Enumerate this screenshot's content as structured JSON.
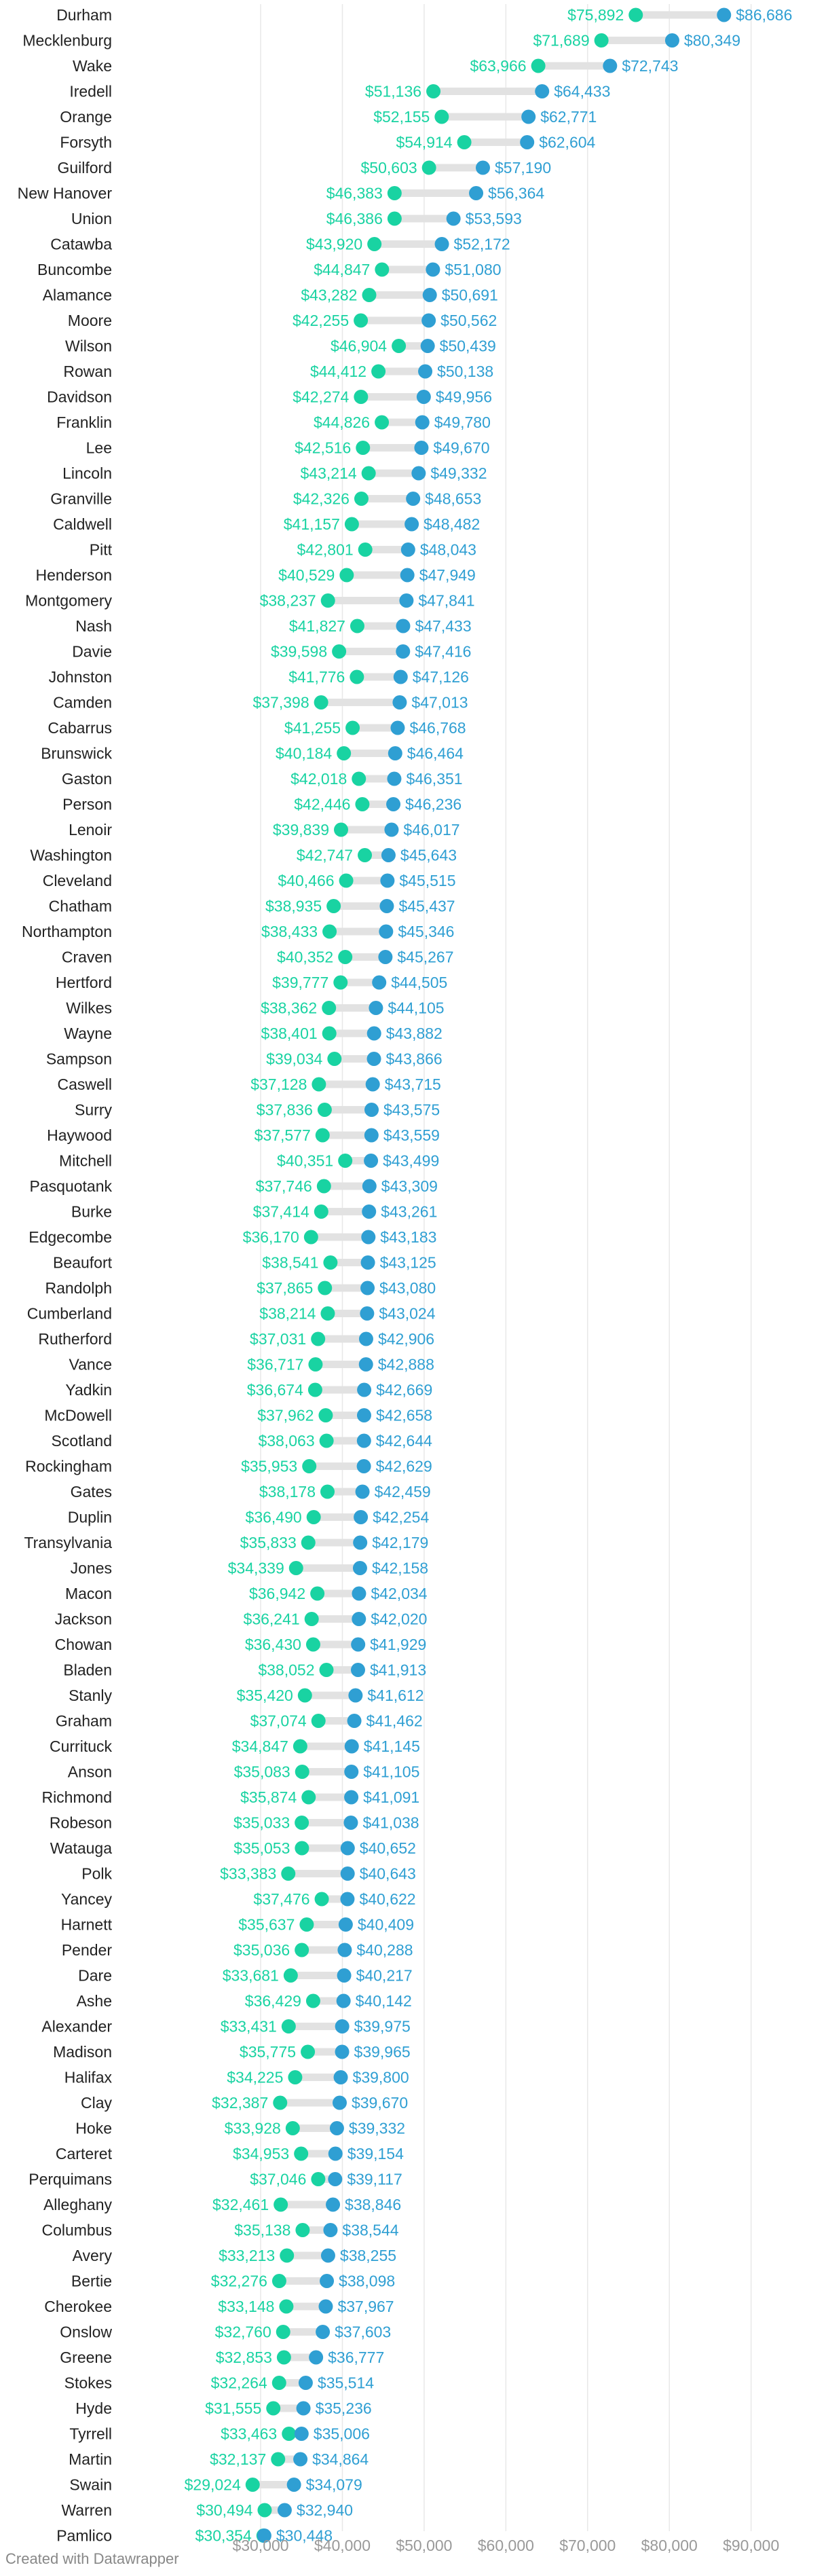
{
  "colors": {
    "low": "#19d3a2",
    "high": "#2f9fd3",
    "connector": "#e2e2e2",
    "grid": "#e8e8e8",
    "axis_text": "#999999"
  },
  "credit": "Created with Datawrapper",
  "chart_data": {
    "type": "dot-range",
    "title": "",
    "xlim": [
      23000,
      93000
    ],
    "ticks": [
      30000,
      40000,
      50000,
      60000,
      70000,
      80000,
      90000
    ],
    "tick_labels": [
      "$30,000",
      "$40,000",
      "$50,000",
      "$60,000",
      "$70,000",
      "$80,000",
      "$90,000"
    ],
    "series": [
      {
        "name": "low",
        "color": "#19d3a2"
      },
      {
        "name": "high",
        "color": "#2f9fd3"
      }
    ],
    "rows": [
      {
        "county": "Durham",
        "low": 75892,
        "low_label": "$75,892",
        "high": 86686,
        "high_label": "$86,686"
      },
      {
        "county": "Mecklenburg",
        "low": 71689,
        "low_label": "$71,689",
        "high": 80349,
        "high_label": "$80,349"
      },
      {
        "county": "Wake",
        "low": 63966,
        "low_label": "$63,966",
        "high": 72743,
        "high_label": "$72,743"
      },
      {
        "county": "Iredell",
        "low": 51136,
        "low_label": "$51,136",
        "high": 64433,
        "high_label": "$64,433"
      },
      {
        "county": "Orange",
        "low": 52155,
        "low_label": "$52,155",
        "high": 62771,
        "high_label": "$62,771"
      },
      {
        "county": "Forsyth",
        "low": 54914,
        "low_label": "$54,914",
        "high": 62604,
        "high_label": "$62,604"
      },
      {
        "county": "Guilford",
        "low": 50603,
        "low_label": "$50,603",
        "high": 57190,
        "high_label": "$57,190"
      },
      {
        "county": "New Hanover",
        "low": 46383,
        "low_label": "$46,383",
        "high": 56364,
        "high_label": "$56,364"
      },
      {
        "county": "Union",
        "low": 46386,
        "low_label": "$46,386",
        "high": 53593,
        "high_label": "$53,593"
      },
      {
        "county": "Catawba",
        "low": 43920,
        "low_label": "$43,920",
        "high": 52172,
        "high_label": "$52,172"
      },
      {
        "county": "Buncombe",
        "low": 44847,
        "low_label": "$44,847",
        "high": 51080,
        "high_label": "$51,080"
      },
      {
        "county": "Alamance",
        "low": 43282,
        "low_label": "$43,282",
        "high": 50691,
        "high_label": "$50,691"
      },
      {
        "county": "Moore",
        "low": 42255,
        "low_label": "$42,255",
        "high": 50562,
        "high_label": "$50,562"
      },
      {
        "county": "Wilson",
        "low": 46904,
        "low_label": "$46,904",
        "high": 50439,
        "high_label": "$50,439"
      },
      {
        "county": "Rowan",
        "low": 44412,
        "low_label": "$44,412",
        "high": 50138,
        "high_label": "$50,138"
      },
      {
        "county": "Davidson",
        "low": 42274,
        "low_label": "$42,274",
        "high": 49956,
        "high_label": "$49,956"
      },
      {
        "county": "Franklin",
        "low": 44826,
        "low_label": "$44,826",
        "high": 49780,
        "high_label": "$49,780"
      },
      {
        "county": "Lee",
        "low": 42516,
        "low_label": "$42,516",
        "high": 49670,
        "high_label": "$49,670"
      },
      {
        "county": "Lincoln",
        "low": 43214,
        "low_label": "$43,214",
        "high": 49332,
        "high_label": "$49,332"
      },
      {
        "county": "Granville",
        "low": 42326,
        "low_label": "$42,326",
        "high": 48653,
        "high_label": "$48,653"
      },
      {
        "county": "Caldwell",
        "low": 41157,
        "low_label": "$41,157",
        "high": 48482,
        "high_label": "$48,482"
      },
      {
        "county": "Pitt",
        "low": 42801,
        "low_label": "$42,801",
        "high": 48043,
        "high_label": "$48,043"
      },
      {
        "county": "Henderson",
        "low": 40529,
        "low_label": "$40,529",
        "high": 47949,
        "high_label": "$47,949"
      },
      {
        "county": "Montgomery",
        "low": 38237,
        "low_label": "$38,237",
        "high": 47841,
        "high_label": "$47,841"
      },
      {
        "county": "Nash",
        "low": 41827,
        "low_label": "$41,827",
        "high": 47433,
        "high_label": "$47,433"
      },
      {
        "county": "Davie",
        "low": 39598,
        "low_label": "$39,598",
        "high": 47416,
        "high_label": "$47,416"
      },
      {
        "county": "Johnston",
        "low": 41776,
        "low_label": "$41,776",
        "high": 47126,
        "high_label": "$47,126"
      },
      {
        "county": "Camden",
        "low": 37398,
        "low_label": "$37,398",
        "high": 47013,
        "high_label": "$47,013"
      },
      {
        "county": "Cabarrus",
        "low": 41255,
        "low_label": "$41,255",
        "high": 46768,
        "high_label": "$46,768"
      },
      {
        "county": "Brunswick",
        "low": 40184,
        "low_label": "$40,184",
        "high": 46464,
        "high_label": "$46,464"
      },
      {
        "county": "Gaston",
        "low": 42018,
        "low_label": "$42,018",
        "high": 46351,
        "high_label": "$46,351"
      },
      {
        "county": "Person",
        "low": 42446,
        "low_label": "$42,446",
        "high": 46236,
        "high_label": "$46,236"
      },
      {
        "county": "Lenoir",
        "low": 39839,
        "low_label": "$39,839",
        "high": 46017,
        "high_label": "$46,017"
      },
      {
        "county": "Washington",
        "low": 42747,
        "low_label": "$42,747",
        "high": 45643,
        "high_label": "$45,643"
      },
      {
        "county": "Cleveland",
        "low": 40466,
        "low_label": "$40,466",
        "high": 45515,
        "high_label": "$45,515"
      },
      {
        "county": "Chatham",
        "low": 38935,
        "low_label": "$38,935",
        "high": 45437,
        "high_label": "$45,437"
      },
      {
        "county": "Northampton",
        "low": 38433,
        "low_label": "$38,433",
        "high": 45346,
        "high_label": "$45,346"
      },
      {
        "county": "Craven",
        "low": 40352,
        "low_label": "$40,352",
        "high": 45267,
        "high_label": "$45,267"
      },
      {
        "county": "Hertford",
        "low": 39777,
        "low_label": "$39,777",
        "high": 44505,
        "high_label": "$44,505"
      },
      {
        "county": "Wilkes",
        "low": 38362,
        "low_label": "$38,362",
        "high": 44105,
        "high_label": "$44,105"
      },
      {
        "county": "Wayne",
        "low": 38401,
        "low_label": "$38,401",
        "high": 43882,
        "high_label": "$43,882"
      },
      {
        "county": "Sampson",
        "low": 39034,
        "low_label": "$39,034",
        "high": 43866,
        "high_label": "$43,866"
      },
      {
        "county": "Caswell",
        "low": 37128,
        "low_label": "$37,128",
        "high": 43715,
        "high_label": "$43,715"
      },
      {
        "county": "Surry",
        "low": 37836,
        "low_label": "$37,836",
        "high": 43575,
        "high_label": "$43,575"
      },
      {
        "county": "Haywood",
        "low": 37577,
        "low_label": "$37,577",
        "high": 43559,
        "high_label": "$43,559"
      },
      {
        "county": "Mitchell",
        "low": 40351,
        "low_label": "$40,351",
        "high": 43499,
        "high_label": "$43,499"
      },
      {
        "county": "Pasquotank",
        "low": 37746,
        "low_label": "$37,746",
        "high": 43309,
        "high_label": "$43,309"
      },
      {
        "county": "Burke",
        "low": 37414,
        "low_label": "$37,414",
        "high": 43261,
        "high_label": "$43,261"
      },
      {
        "county": "Edgecombe",
        "low": 36170,
        "low_label": "$36,170",
        "high": 43183,
        "high_label": "$43,183"
      },
      {
        "county": "Beaufort",
        "low": 38541,
        "low_label": "$38,541",
        "high": 43125,
        "high_label": "$43,125"
      },
      {
        "county": "Randolph",
        "low": 37865,
        "low_label": "$37,865",
        "high": 43080,
        "high_label": "$43,080"
      },
      {
        "county": "Cumberland",
        "low": 38214,
        "low_label": "$38,214",
        "high": 43024,
        "high_label": "$43,024"
      },
      {
        "county": "Rutherford",
        "low": 37031,
        "low_label": "$37,031",
        "high": 42906,
        "high_label": "$42,906"
      },
      {
        "county": "Vance",
        "low": 36717,
        "low_label": "$36,717",
        "high": 42888,
        "high_label": "$42,888"
      },
      {
        "county": "Yadkin",
        "low": 36674,
        "low_label": "$36,674",
        "high": 42669,
        "high_label": "$42,669"
      },
      {
        "county": "McDowell",
        "low": 37962,
        "low_label": "$37,962",
        "high": 42658,
        "high_label": "$42,658"
      },
      {
        "county": "Scotland",
        "low": 38063,
        "low_label": "$38,063",
        "high": 42644,
        "high_label": "$42,644"
      },
      {
        "county": "Rockingham",
        "low": 35953,
        "low_label": "$35,953",
        "high": 42629,
        "high_label": "$42,629"
      },
      {
        "county": "Gates",
        "low": 38178,
        "low_label": "$38,178",
        "high": 42459,
        "high_label": "$42,459"
      },
      {
        "county": "Duplin",
        "low": 36490,
        "low_label": "$36,490",
        "high": 42254,
        "high_label": "$42,254"
      },
      {
        "county": "Transylvania",
        "low": 35833,
        "low_label": "$35,833",
        "high": 42179,
        "high_label": "$42,179"
      },
      {
        "county": "Jones",
        "low": 34339,
        "low_label": "$34,339",
        "high": 42158,
        "high_label": "$42,158"
      },
      {
        "county": "Macon",
        "low": 36942,
        "low_label": "$36,942",
        "high": 42034,
        "high_label": "$42,034"
      },
      {
        "county": "Jackson",
        "low": 36241,
        "low_label": "$36,241",
        "high": 42020,
        "high_label": "$42,020"
      },
      {
        "county": "Chowan",
        "low": 36430,
        "low_label": "$36,430",
        "high": 41929,
        "high_label": "$41,929"
      },
      {
        "county": "Bladen",
        "low": 38052,
        "low_label": "$38,052",
        "high": 41913,
        "high_label": "$41,913"
      },
      {
        "county": "Stanly",
        "low": 35420,
        "low_label": "$35,420",
        "high": 41612,
        "high_label": "$41,612"
      },
      {
        "county": "Graham",
        "low": 37074,
        "low_label": "$37,074",
        "high": 41462,
        "high_label": "$41,462"
      },
      {
        "county": "Currituck",
        "low": 34847,
        "low_label": "$34,847",
        "high": 41145,
        "high_label": "$41,145"
      },
      {
        "county": "Anson",
        "low": 35083,
        "low_label": "$35,083",
        "high": 41105,
        "high_label": "$41,105"
      },
      {
        "county": "Richmond",
        "low": 35874,
        "low_label": "$35,874",
        "high": 41091,
        "high_label": "$41,091"
      },
      {
        "county": "Robeson",
        "low": 35033,
        "low_label": "$35,033",
        "high": 41038,
        "high_label": "$41,038"
      },
      {
        "county": "Watauga",
        "low": 35053,
        "low_label": "$35,053",
        "high": 40652,
        "high_label": "$40,652"
      },
      {
        "county": "Polk",
        "low": 33383,
        "low_label": "$33,383",
        "high": 40643,
        "high_label": "$40,643"
      },
      {
        "county": "Yancey",
        "low": 37476,
        "low_label": "$37,476",
        "high": 40622,
        "high_label": "$40,622"
      },
      {
        "county": "Harnett",
        "low": 35637,
        "low_label": "$35,637",
        "high": 40409,
        "high_label": "$40,409"
      },
      {
        "county": "Pender",
        "low": 35036,
        "low_label": "$35,036",
        "high": 40288,
        "high_label": "$40,288"
      },
      {
        "county": "Dare",
        "low": 33681,
        "low_label": "$33,681",
        "high": 40217,
        "high_label": "$40,217"
      },
      {
        "county": "Ashe",
        "low": 36429,
        "low_label": "$36,429",
        "high": 40142,
        "high_label": "$40,142"
      },
      {
        "county": "Alexander",
        "low": 33431,
        "low_label": "$33,431",
        "high": 39975,
        "high_label": "$39,975"
      },
      {
        "county": "Madison",
        "low": 35775,
        "low_label": "$35,775",
        "high": 39965,
        "high_label": "$39,965"
      },
      {
        "county": "Halifax",
        "low": 34225,
        "low_label": "$34,225",
        "high": 39800,
        "high_label": "$39,800"
      },
      {
        "county": "Clay",
        "low": 32387,
        "low_label": "$32,387",
        "high": 39670,
        "high_label": "$39,670"
      },
      {
        "county": "Hoke",
        "low": 33928,
        "low_label": "$33,928",
        "high": 39332,
        "high_label": "$39,332"
      },
      {
        "county": "Carteret",
        "low": 34953,
        "low_label": "$34,953",
        "high": 39154,
        "high_label": "$39,154"
      },
      {
        "county": "Perquimans",
        "low": 37046,
        "low_label": "$37,046",
        "high": 39117,
        "high_label": "$39,117"
      },
      {
        "county": "Alleghany",
        "low": 32461,
        "low_label": "$32,461",
        "high": 38846,
        "high_label": "$38,846"
      },
      {
        "county": "Columbus",
        "low": 35138,
        "low_label": "$35,138",
        "high": 38544,
        "high_label": "$38,544"
      },
      {
        "county": "Avery",
        "low": 33213,
        "low_label": "$33,213",
        "high": 38255,
        "high_label": "$38,255"
      },
      {
        "county": "Bertie",
        "low": 32276,
        "low_label": "$32,276",
        "high": 38098,
        "high_label": "$38,098"
      },
      {
        "county": "Cherokee",
        "low": 33148,
        "low_label": "$33,148",
        "high": 37967,
        "high_label": "$37,967"
      },
      {
        "county": "Onslow",
        "low": 32760,
        "low_label": "$32,760",
        "high": 37603,
        "high_label": "$37,603"
      },
      {
        "county": "Greene",
        "low": 32853,
        "low_label": "$32,853",
        "high": 36777,
        "high_label": "$36,777"
      },
      {
        "county": "Stokes",
        "low": 32264,
        "low_label": "$32,264",
        "high": 35514,
        "high_label": "$35,514"
      },
      {
        "county": "Hyde",
        "low": 31555,
        "low_label": "$31,555",
        "high": 35236,
        "high_label": "$35,236"
      },
      {
        "county": "Tyrrell",
        "low": 33463,
        "low_label": "$33,463",
        "high": 35006,
        "high_label": "$35,006"
      },
      {
        "county": "Martin",
        "low": 32137,
        "low_label": "$32,137",
        "high": 34864,
        "high_label": "$34,864"
      },
      {
        "county": "Swain",
        "low": 29024,
        "low_label": "$29,024",
        "high": 34079,
        "high_label": "$34,079"
      },
      {
        "county": "Warren",
        "low": 30494,
        "low_label": "$30,494",
        "high": 32940,
        "high_label": "$32,940"
      },
      {
        "county": "Pamlico",
        "low": 30354,
        "low_label": "$30,354",
        "high": 30448,
        "high_label": "$30,448"
      }
    ]
  }
}
